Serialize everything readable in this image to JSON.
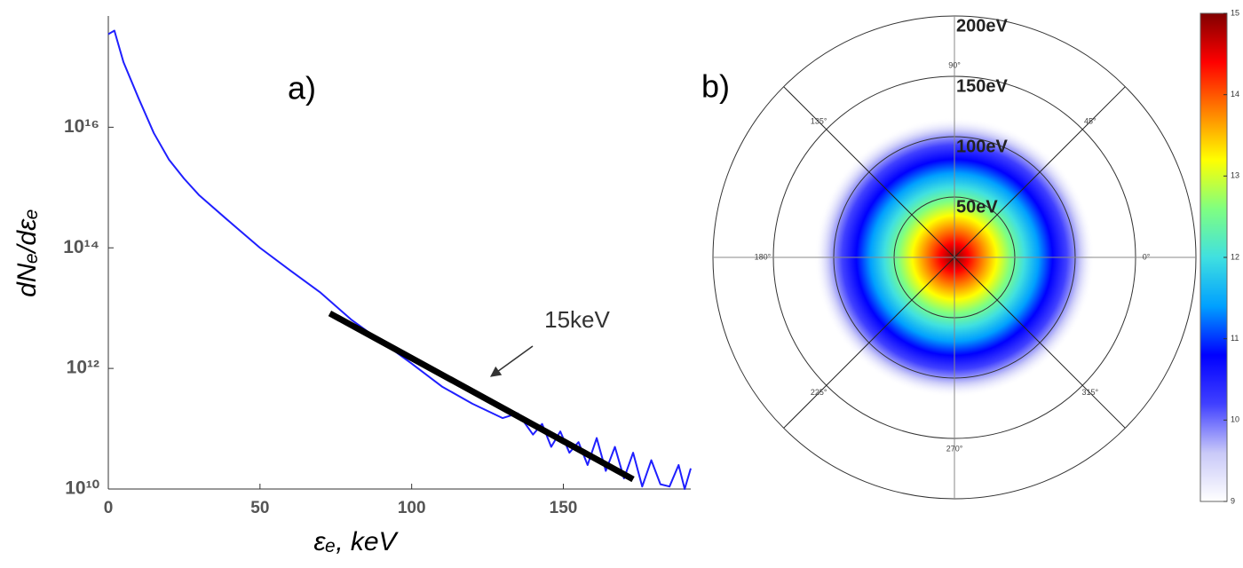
{
  "chart_data": [
    {
      "type": "line",
      "panel_label": "a)",
      "xlabel": "εₑ, keV",
      "ylabel": "dNₑ/dεₑ",
      "log_y": true,
      "xlim": [
        0,
        192
      ],
      "xticks": [
        0,
        50,
        100,
        150
      ],
      "ylim": [
        10000000000.0,
        7e+17
      ],
      "yticks": [
        {
          "value": 10000000000.0,
          "label": "10¹⁰"
        },
        {
          "value": 1000000000000.0,
          "label": "10¹²"
        },
        {
          "value": 100000000000000.0,
          "label": "10¹⁴"
        },
        {
          "value": 1e+16,
          "label": "10¹⁶"
        }
      ],
      "annotation": "15keV",
      "series": [
        {
          "name": "spectrum",
          "color": "#1f1fff",
          "x": [
            0,
            2,
            5,
            10,
            15,
            20,
            25,
            30,
            40,
            50,
            60,
            70,
            80,
            90,
            100,
            110,
            120,
            130,
            135,
            140,
            143,
            146,
            149,
            152,
            155,
            158,
            161,
            164,
            167,
            170,
            173,
            176,
            179,
            182,
            185,
            188,
            190,
            192
          ],
          "values": [
            3.5e+17,
            4e+17,
            1.2e+17,
            3e+16,
            8000000000000000.0,
            2900000000000000.0,
            1400000000000000.0,
            740000000000000.0,
            270000000000000.0,
            100000000000000.0,
            42000000000000.0,
            18000000000000.0,
            6500000000000.0,
            2800000000000.0,
            1200000000000.0,
            500000000000.0,
            260000000000.0,
            150000000000.0,
            180000000000.0,
            80000000000.0,
            120000000000.0,
            50000000000.0,
            90000000000.0,
            40000000000.0,
            60000000000.0,
            25000000000.0,
            70000000000.0,
            20000000000.0,
            50000000000.0,
            15000000000.0,
            40000000000.0,
            11000000000.0,
            30000000000.0,
            12000000000.0,
            11000000000.0,
            25000000000.0,
            10000000000.0,
            22000000000.0
          ]
        },
        {
          "name": "fit",
          "color": "#000000",
          "x": [
            73,
            173
          ],
          "values": [
            8200000000000.0,
            14500000000.0
          ]
        }
      ]
    },
    {
      "type": "polar",
      "panel_label": "b)",
      "rlim": [
        0,
        200
      ],
      "rticks": [
        {
          "value": 50,
          "label": "50eV"
        },
        {
          "value": 100,
          "label": "100eV"
        },
        {
          "value": 150,
          "label": "150eV"
        },
        {
          "value": 200,
          "label": "200eV"
        }
      ],
      "thetaticks": [
        {
          "value": 0,
          "label": "0°"
        },
        {
          "value": 45,
          "label": "45°"
        },
        {
          "value": 90,
          "label": "90°"
        },
        {
          "value": 135,
          "label": "135°"
        },
        {
          "value": 180,
          "label": "180°"
        },
        {
          "value": 225,
          "label": "225°"
        },
        {
          "value": 270,
          "label": "270°"
        },
        {
          "value": 315,
          "label": "315°"
        }
      ],
      "clim": [
        9,
        15
      ],
      "cticks": [
        9,
        10,
        11,
        12,
        13,
        14,
        15
      ],
      "colormap": [
        "#ffffff",
        "#c8c8f8",
        "#4040ff",
        "#0000ff",
        "#00a0ff",
        "#40e0e0",
        "#80ff80",
        "#ffff00",
        "#ff8000",
        "#ff0000",
        "#800000"
      ]
    }
  ]
}
